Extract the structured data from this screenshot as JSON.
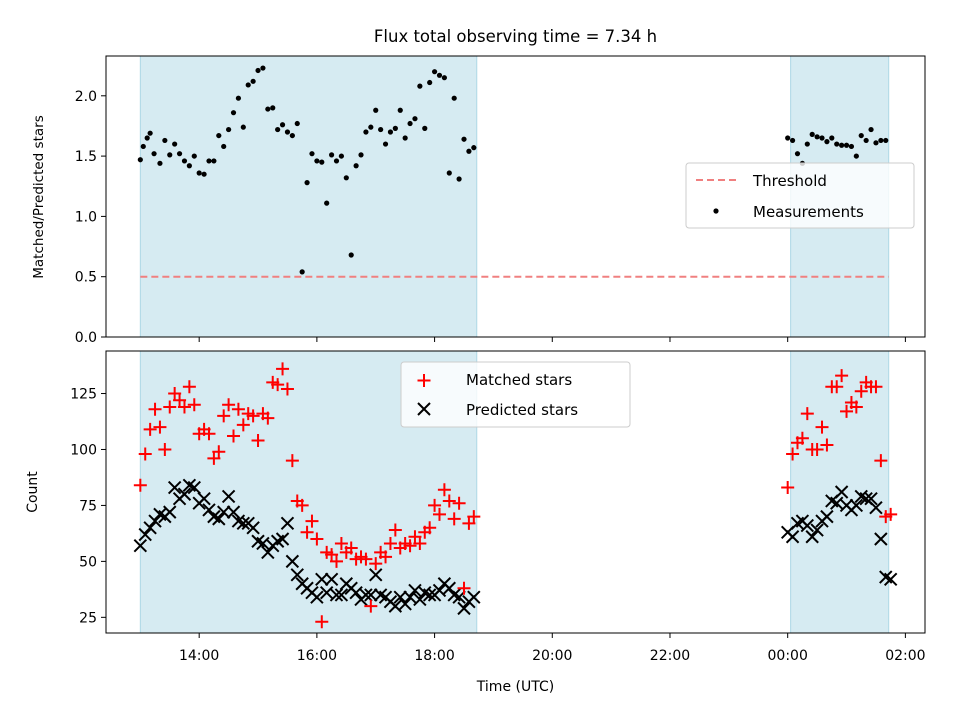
{
  "chart_data": [
    {
      "type": "scatter",
      "title": "Flux total observing time = 7.34 h",
      "ylabel": "Matched/Predicted stars",
      "xlim": [
        "12:25",
        "26:20"
      ],
      "ylim": [
        0,
        2.33
      ],
      "yticks": [
        "0.0",
        "0.5",
        "1.0",
        "1.5",
        "2.0"
      ],
      "grid": false,
      "legend_position": "center-right",
      "shaded_intervals": [
        {
          "start": "13:00",
          "end": "18:43",
          "color": "#add8e6"
        },
        {
          "start": "24:03",
          "end": "25:43",
          "color": "#add8e6"
        }
      ],
      "threshold": {
        "name": "Threshold",
        "value": 0.5,
        "x_start": "13:00",
        "x_end": "25:43",
        "color": "#f08080",
        "style": "dashed"
      },
      "measurements": {
        "name": "Measurements",
        "color": "#000000",
        "x": [
          "13:00",
          "13:03",
          "13:07",
          "13:10",
          "13:14",
          "13:20",
          "13:25",
          "13:30",
          "13:35",
          "13:40",
          "13:45",
          "13:50",
          "13:55",
          "14:00",
          "14:05",
          "14:10",
          "14:15",
          "14:20",
          "14:25",
          "14:30",
          "14:35",
          "14:40",
          "14:45",
          "14:50",
          "14:55",
          "15:00",
          "15:05",
          "15:10",
          "15:15",
          "15:20",
          "15:25",
          "15:30",
          "15:35",
          "15:40",
          "15:45",
          "15:50",
          "15:55",
          "16:00",
          "16:05",
          "16:10",
          "16:15",
          "16:20",
          "16:25",
          "16:30",
          "16:35",
          "16:40",
          "16:45",
          "16:50",
          "16:55",
          "17:00",
          "17:05",
          "17:10",
          "17:15",
          "17:20",
          "17:25",
          "17:30",
          "17:35",
          "17:40",
          "17:45",
          "17:50",
          "17:55",
          "18:00",
          "18:05",
          "18:10",
          "18:15",
          "18:20",
          "18:25",
          "18:30",
          "18:35",
          "18:40",
          "24:00",
          "24:05",
          "24:10",
          "24:15",
          "24:20",
          "24:25",
          "24:30",
          "24:35",
          "24:40",
          "24:45",
          "24:50",
          "24:55",
          "25:00",
          "25:05",
          "25:10",
          "25:15",
          "25:20",
          "25:25",
          "25:30",
          "25:35",
          "25:40"
        ],
        "y": [
          1.47,
          1.58,
          1.65,
          1.69,
          1.52,
          1.44,
          1.63,
          1.51,
          1.6,
          1.52,
          1.46,
          1.42,
          1.5,
          1.36,
          1.35,
          1.46,
          1.46,
          1.67,
          1.58,
          1.72,
          1.86,
          1.98,
          1.74,
          2.09,
          2.12,
          2.21,
          2.23,
          1.89,
          1.9,
          1.72,
          1.76,
          1.7,
          1.67,
          1.77,
          0.54,
          1.28,
          1.52,
          1.46,
          1.45,
          1.11,
          1.51,
          1.46,
          1.5,
          1.32,
          0.68,
          1.42,
          1.51,
          1.7,
          1.74,
          1.88,
          1.72,
          1.6,
          1.7,
          1.73,
          1.88,
          1.65,
          1.77,
          1.81,
          2.08,
          1.73,
          2.11,
          2.2,
          2.17,
          2.15,
          1.36,
          1.98,
          1.31,
          1.64,
          1.54,
          1.57,
          1.65,
          1.63,
          1.52,
          1.44,
          1.6,
          1.68,
          1.66,
          1.65,
          1.62,
          1.65,
          1.6,
          1.59,
          1.59,
          1.58,
          1.5,
          1.67,
          1.63,
          1.72,
          1.61,
          1.63,
          1.63
        ]
      }
    },
    {
      "type": "scatter",
      "xlabel": "Time (UTC)",
      "ylabel": "Count",
      "xlim": [
        "12:25",
        "26:20"
      ],
      "ylim": [
        18,
        144
      ],
      "xticks": [
        "14:00",
        "16:00",
        "18:00",
        "20:00",
        "22:00",
        "00:00",
        "02:00"
      ],
      "yticks": [
        "25",
        "50",
        "75",
        "100",
        "125"
      ],
      "grid": false,
      "legend_position": "top-center",
      "shaded_intervals": [
        {
          "start": "13:00",
          "end": "18:43",
          "color": "#add8e6"
        },
        {
          "start": "24:03",
          "end": "25:43",
          "color": "#add8e6"
        }
      ],
      "series": [
        {
          "name": "Matched stars",
          "marker": "+",
          "color": "#ff0000",
          "x": [
            "13:00",
            "13:05",
            "13:10",
            "13:15",
            "13:20",
            "13:25",
            "13:30",
            "13:35",
            "13:40",
            "13:45",
            "13:50",
            "13:55",
            "14:00",
            "14:05",
            "14:10",
            "14:15",
            "14:20",
            "14:25",
            "14:30",
            "14:35",
            "14:40",
            "14:45",
            "14:50",
            "14:55",
            "15:00",
            "15:05",
            "15:10",
            "15:15",
            "15:20",
            "15:25",
            "15:30",
            "15:35",
            "15:40",
            "15:45",
            "15:50",
            "15:55",
            "16:00",
            "16:05",
            "16:10",
            "16:15",
            "16:20",
            "16:25",
            "16:30",
            "16:35",
            "16:40",
            "16:45",
            "16:50",
            "16:55",
            "17:00",
            "17:05",
            "17:10",
            "17:15",
            "17:20",
            "17:25",
            "17:30",
            "17:35",
            "17:40",
            "17:45",
            "17:50",
            "17:55",
            "18:00",
            "18:05",
            "18:10",
            "18:15",
            "18:20",
            "18:25",
            "18:30",
            "18:35",
            "18:40",
            "24:00",
            "24:05",
            "24:10",
            "24:15",
            "24:20",
            "24:25",
            "24:30",
            "24:35",
            "24:40",
            "24:45",
            "24:50",
            "24:55",
            "25:00",
            "25:05",
            "25:10",
            "25:15",
            "25:20",
            "25:25",
            "25:30",
            "25:35",
            "25:40",
            "25:45"
          ],
          "y": [
            84,
            98,
            109,
            118,
            110,
            100,
            119,
            125,
            122,
            119,
            128,
            120,
            107,
            109,
            107,
            96,
            99,
            115,
            120,
            106,
            118,
            111,
            116,
            115,
            104,
            116,
            114,
            130,
            129,
            136,
            127,
            95,
            77,
            75,
            63,
            68,
            60,
            23,
            54,
            53,
            50,
            58,
            54,
            56,
            51,
            52,
            51,
            30,
            49,
            54,
            52,
            58,
            64,
            56,
            58,
            57,
            61,
            58,
            63,
            65,
            75,
            71,
            82,
            77,
            69,
            76,
            38,
            67,
            70,
            83,
            98,
            103,
            105,
            116,
            100,
            100,
            110,
            102,
            128,
            128,
            133,
            117,
            121,
            119,
            126,
            130,
            128,
            128,
            95,
            70,
            71
          ]
        },
        {
          "name": "Predicted stars",
          "marker": "x",
          "color": "#000000",
          "x": [
            "13:00",
            "13:05",
            "13:10",
            "13:15",
            "13:20",
            "13:25",
            "13:30",
            "13:35",
            "13:40",
            "13:45",
            "13:50",
            "13:55",
            "14:00",
            "14:05",
            "14:10",
            "14:15",
            "14:20",
            "14:25",
            "14:30",
            "14:35",
            "14:40",
            "14:45",
            "14:50",
            "14:55",
            "15:00",
            "15:05",
            "15:10",
            "15:15",
            "15:20",
            "15:25",
            "15:30",
            "15:35",
            "15:40",
            "15:45",
            "15:50",
            "15:55",
            "16:00",
            "16:05",
            "16:10",
            "16:15",
            "16:20",
            "16:25",
            "16:30",
            "16:35",
            "16:40",
            "16:45",
            "16:50",
            "16:55",
            "17:00",
            "17:05",
            "17:10",
            "17:15",
            "17:20",
            "17:25",
            "17:30",
            "17:35",
            "17:40",
            "17:45",
            "17:50",
            "17:55",
            "18:00",
            "18:05",
            "18:10",
            "18:15",
            "18:20",
            "18:25",
            "18:30",
            "18:35",
            "18:40",
            "24:00",
            "24:05",
            "24:10",
            "24:15",
            "24:20",
            "24:25",
            "24:30",
            "24:35",
            "24:40",
            "24:45",
            "24:50",
            "24:55",
            "25:00",
            "25:05",
            "25:10",
            "25:15",
            "25:20",
            "25:25",
            "25:30",
            "25:35",
            "25:40",
            "25:45"
          ],
          "y": [
            57,
            62,
            65,
            68,
            71,
            70,
            72,
            83,
            78,
            80,
            84,
            83,
            76,
            78,
            73,
            70,
            69,
            72,
            79,
            72,
            68,
            67,
            67,
            65,
            59,
            58,
            54,
            57,
            59,
            60,
            67,
            50,
            44,
            40,
            38,
            36,
            34,
            42,
            36,
            42,
            35,
            35,
            40,
            38,
            36,
            33,
            35,
            35,
            44,
            35,
            34,
            32,
            30,
            34,
            31,
            34,
            37,
            33,
            36,
            35,
            35,
            37,
            40,
            38,
            35,
            34,
            29,
            32,
            34,
            63,
            61,
            67,
            68,
            66,
            61,
            64,
            68,
            70,
            77,
            76,
            81,
            75,
            73,
            75,
            79,
            78,
            78,
            74,
            60,
            43,
            42
          ]
        }
      ]
    }
  ]
}
